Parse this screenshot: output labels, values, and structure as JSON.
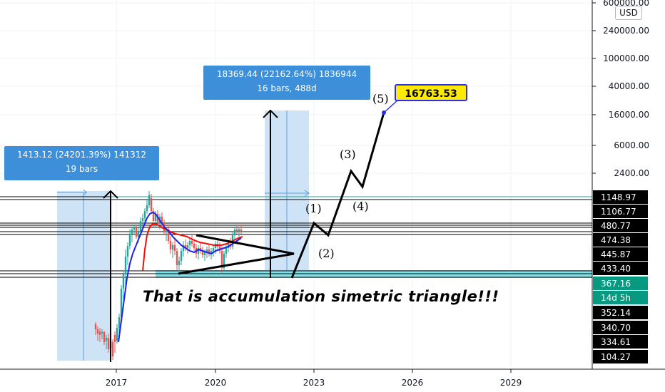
{
  "chart_data": {
    "type": "candlestick",
    "price_axis": {
      "unit": "USD",
      "scale": "log",
      "ticks": [
        "600000.00",
        "240000.00",
        "100000.00",
        "40000.00",
        "16000.00",
        "6000.00",
        "2400.00"
      ],
      "price_labels": [
        {
          "value": "1148.97",
          "bg": "#000000",
          "fg": "#ffffff"
        },
        {
          "value": "1106.77",
          "bg": "#000000",
          "fg": "#ffffff"
        },
        {
          "value": "480.77",
          "bg": "#000000",
          "fg": "#ffffff"
        },
        {
          "value": "474.38",
          "bg": "#000000",
          "fg": "#ffffff"
        },
        {
          "value": "445.87",
          "bg": "#000000",
          "fg": "#ffffff"
        },
        {
          "value": "433.40",
          "bg": "#000000",
          "fg": "#ffffff"
        },
        {
          "value": "367.16",
          "bg": "#089981",
          "fg": "#ffffff"
        },
        {
          "value": "14d 5h",
          "bg": "#089981",
          "fg": "#ffffff"
        },
        {
          "value": "352.14",
          "bg": "#000000",
          "fg": "#ffffff"
        },
        {
          "value": "340.70",
          "bg": "#000000",
          "fg": "#ffffff"
        },
        {
          "value": "334.61",
          "bg": "#000000",
          "fg": "#ffffff"
        },
        {
          "value": "104.27",
          "bg": "#000000",
          "fg": "#ffffff"
        }
      ]
    },
    "time_axis": {
      "ticks": [
        "2017",
        "2020",
        "2023",
        "2026",
        "2029"
      ]
    },
    "measurements": [
      {
        "line1": "1413.12 (24201.39%) 141312",
        "line2": "19 bars"
      },
      {
        "line1": "18369.44 (22162.64%) 1836944",
        "line2": "16 bars, 488d"
      }
    ],
    "wave_labels": [
      "(1)",
      "(2)",
      "(3)",
      "(4)",
      "(5)"
    ],
    "target_label": "16763.53",
    "note": "That is accumulation simetric triangle!!!",
    "candles": [
      [
        100,
        340,
        500,
        320,
        470
      ],
      [
        101,
        470,
        470,
        400,
        430
      ],
      [
        102,
        430,
        500,
        420,
        480
      ],
      [
        103,
        480,
        480,
        430,
        460
      ],
      [
        104,
        460,
        500,
        440,
        490
      ],
      [
        105,
        490,
        490,
        470,
        480
      ],
      [
        106,
        480,
        495,
        470,
        488
      ],
      [
        107,
        488,
        490,
        450,
        460
      ],
      [
        108,
        440,
        460,
        380,
        400
      ],
      [
        109,
        400,
        420,
        340,
        360
      ],
      [
        110,
        360,
        420,
        350,
        410
      ],
      [
        111,
        410,
        470,
        370,
        400
      ],
      [
        112,
        400,
        470,
        380,
        460
      ],
      [
        113,
        460,
        490,
        390,
        430
      ],
      [
        114,
        430,
        480,
        420,
        470
      ],
      [
        115,
        470,
        500,
        440,
        490
      ],
      [
        116,
        490,
        500,
        460,
        480
      ],
      [
        117,
        480,
        520,
        470,
        510
      ],
      [
        118,
        510,
        540,
        480,
        500
      ],
      [
        119,
        500,
        530,
        470,
        520
      ]
    ],
    "colors": {
      "up": "#26a69a",
      "down": "#ef5350",
      "ma_fast": "#1e22ef",
      "ma_slow": "#f20d0d",
      "measure_fill": "#cfe3f6",
      "measure_line": "#5aa1e0",
      "cyan_zone": "#7fe3ec"
    }
  }
}
